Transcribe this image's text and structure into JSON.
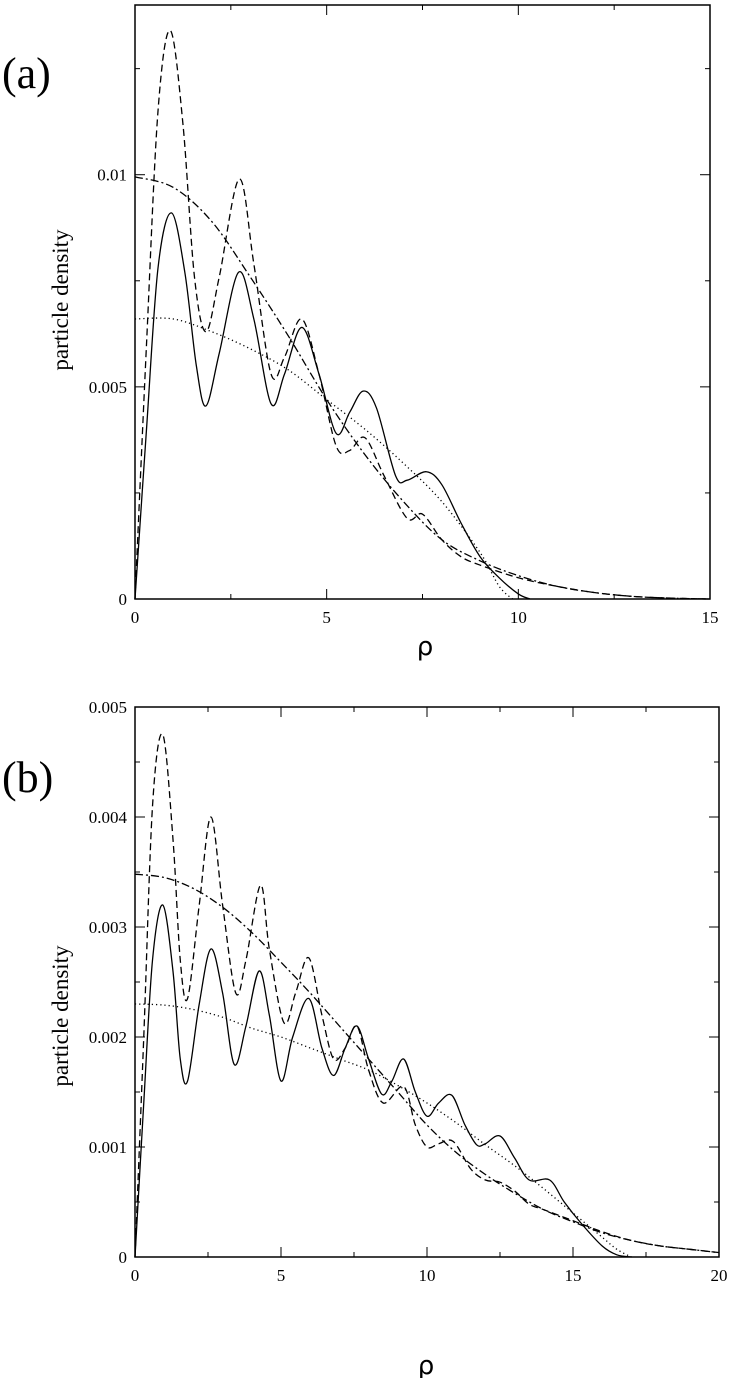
{
  "chart_data": [
    {
      "type": "line",
      "panel_label": "(a)",
      "xlabel": "ρ",
      "ylabel": "particle density",
      "xlim": [
        0,
        15
      ],
      "ylim": [
        0,
        0.014
      ],
      "xticks": [
        0,
        5,
        10,
        15
      ],
      "xtick_labels": [
        "0",
        "5",
        "10",
        "15"
      ],
      "yticks": [
        0,
        0.005,
        0.01
      ],
      "ytick_labels": [
        "0",
        "0.005",
        "0.01"
      ],
      "grid": false,
      "legend": "none",
      "series": [
        {
          "style": "solid",
          "points": [
            [
              0,
              0
            ],
            [
              0.3,
              0.004
            ],
            [
              0.6,
              0.0078
            ],
            [
              0.95,
              0.0091
            ],
            [
              1.3,
              0.0077
            ],
            [
              1.6,
              0.0055
            ],
            [
              1.85,
              0.00455
            ],
            [
              2.2,
              0.0058
            ],
            [
              2.7,
              0.0077
            ],
            [
              3.1,
              0.0066
            ],
            [
              3.55,
              0.0046
            ],
            [
              3.9,
              0.0053
            ],
            [
              4.35,
              0.0064
            ],
            [
              4.8,
              0.0053
            ],
            [
              5.25,
              0.0039
            ],
            [
              5.6,
              0.0044
            ],
            [
              5.95,
              0.0049
            ],
            [
              6.3,
              0.0045
            ],
            [
              6.8,
              0.0029
            ],
            [
              7.1,
              0.0028
            ],
            [
              7.6,
              0.003
            ],
            [
              8.0,
              0.0027
            ],
            [
              8.5,
              0.0018
            ],
            [
              9.0,
              0.001
            ],
            [
              9.5,
              0.0005
            ],
            [
              10.0,
              0.00012
            ],
            [
              10.3,
              0
            ]
          ]
        },
        {
          "style": "dashed",
          "points": [
            [
              0,
              0
            ],
            [
              0.3,
              0.006
            ],
            [
              0.6,
              0.0115
            ],
            [
              0.92,
              0.0134
            ],
            [
              1.25,
              0.0112
            ],
            [
              1.55,
              0.0076
            ],
            [
              1.85,
              0.0063
            ],
            [
              2.2,
              0.0076
            ],
            [
              2.72,
              0.0099
            ],
            [
              3.1,
              0.0079
            ],
            [
              3.55,
              0.0053
            ],
            [
              3.9,
              0.0057
            ],
            [
              4.35,
              0.0066
            ],
            [
              4.8,
              0.0053
            ],
            [
              5.25,
              0.0036
            ],
            [
              5.6,
              0.0035
            ],
            [
              6.0,
              0.0038
            ],
            [
              6.5,
              0.0029
            ],
            [
              7.1,
              0.0019
            ],
            [
              7.5,
              0.002
            ],
            [
              8.0,
              0.0014
            ],
            [
              8.5,
              0.001
            ],
            [
              9.0,
              0.0008
            ],
            [
              10.0,
              0.0005
            ],
            [
              11.0,
              0.0003
            ],
            [
              12.0,
              0.00015
            ],
            [
              13.0,
              6e-05
            ],
            [
              14.0,
              2e-05
            ],
            [
              15.0,
              0
            ]
          ]
        },
        {
          "style": "dashdot",
          "points": [
            [
              0,
              0.00995
            ],
            [
              1,
              0.0097
            ],
            [
              2,
              0.0089
            ],
            [
              3,
              0.0076
            ],
            [
              4,
              0.0062
            ],
            [
              5,
              0.0047
            ],
            [
              6,
              0.0034
            ],
            [
              7,
              0.0023
            ],
            [
              8,
              0.0014
            ],
            [
              9,
              0.0009
            ],
            [
              10,
              0.00055
            ],
            [
              11,
              0.0003
            ],
            [
              12,
              0.00015
            ],
            [
              13,
              6e-05
            ],
            [
              14,
              2e-05
            ],
            [
              15,
              0
            ]
          ]
        },
        {
          "style": "dotted",
          "points": [
            [
              0,
              0.0066
            ],
            [
              1,
              0.0066
            ],
            [
              2,
              0.0063
            ],
            [
              3,
              0.0059
            ],
            [
              4,
              0.0054
            ],
            [
              5,
              0.0047
            ],
            [
              6,
              0.004
            ],
            [
              7,
              0.0032
            ],
            [
              8,
              0.0023
            ],
            [
              9,
              0.0011
            ],
            [
              9.5,
              0.0003
            ],
            [
              9.85,
              0
            ]
          ]
        }
      ]
    },
    {
      "type": "line",
      "panel_label": "(b)",
      "xlabel": "ρ",
      "ylabel": "particle density",
      "xlim": [
        0,
        20
      ],
      "ylim": [
        0,
        0.005
      ],
      "xticks": [
        0,
        5,
        10,
        15,
        20
      ],
      "xtick_labels": [
        "0",
        "5",
        "10",
        "15",
        "20"
      ],
      "yticks": [
        0,
        0.001,
        0.002,
        0.003,
        0.004,
        0.005
      ],
      "ytick_labels": [
        "0",
        "0.001",
        "0.002",
        "0.003",
        "0.004",
        "0.005"
      ],
      "grid": false,
      "legend": "none",
      "series": [
        {
          "style": "solid",
          "points": [
            [
              0,
              0
            ],
            [
              0.3,
              0.0014
            ],
            [
              0.6,
              0.0027
            ],
            [
              0.95,
              0.0032
            ],
            [
              1.3,
              0.0026
            ],
            [
              1.55,
              0.0018
            ],
            [
              1.8,
              0.0016
            ],
            [
              2.2,
              0.0023
            ],
            [
              2.6,
              0.0028
            ],
            [
              3.0,
              0.0024
            ],
            [
              3.4,
              0.00175
            ],
            [
              3.8,
              0.0021
            ],
            [
              4.25,
              0.0026
            ],
            [
              4.6,
              0.0022
            ],
            [
              5.0,
              0.0016
            ],
            [
              5.4,
              0.002
            ],
            [
              5.95,
              0.00235
            ],
            [
              6.4,
              0.0019
            ],
            [
              6.8,
              0.00165
            ],
            [
              7.2,
              0.0019
            ],
            [
              7.6,
              0.0021
            ],
            [
              8.0,
              0.0018
            ],
            [
              8.45,
              0.00148
            ],
            [
              8.8,
              0.0016
            ],
            [
              9.2,
              0.0018
            ],
            [
              9.6,
              0.0015
            ],
            [
              10.0,
              0.00128
            ],
            [
              10.4,
              0.0014
            ],
            [
              10.85,
              0.00147
            ],
            [
              11.3,
              0.0012
            ],
            [
              11.7,
              0.00102
            ],
            [
              12.0,
              0.00103
            ],
            [
              12.5,
              0.0011
            ],
            [
              13.0,
              0.0009
            ],
            [
              13.5,
              0.0007
            ],
            [
              14.2,
              0.0007
            ],
            [
              14.7,
              0.0005
            ],
            [
              15.3,
              0.0003
            ],
            [
              16.0,
              0.0001
            ],
            [
              16.5,
              2e-05
            ],
            [
              17.0,
              0
            ]
          ]
        },
        {
          "style": "dashed",
          "points": [
            [
              0,
              0
            ],
            [
              0.3,
              0.002
            ],
            [
              0.6,
              0.0041
            ],
            [
              0.95,
              0.00475
            ],
            [
              1.3,
              0.0038
            ],
            [
              1.55,
              0.0027
            ],
            [
              1.8,
              0.00235
            ],
            [
              2.2,
              0.0032
            ],
            [
              2.6,
              0.004
            ],
            [
              3.0,
              0.0032
            ],
            [
              3.45,
              0.0024
            ],
            [
              3.8,
              0.0027
            ],
            [
              4.3,
              0.00338
            ],
            [
              4.6,
              0.0028
            ],
            [
              5.1,
              0.00213
            ],
            [
              5.5,
              0.0024
            ],
            [
              5.95,
              0.00272
            ],
            [
              6.4,
              0.0022
            ],
            [
              6.8,
              0.0018
            ],
            [
              7.2,
              0.0019
            ],
            [
              7.6,
              0.0021
            ],
            [
              8.0,
              0.0017
            ],
            [
              8.5,
              0.0014
            ],
            [
              9.2,
              0.00155
            ],
            [
              9.6,
              0.0012
            ],
            [
              10.0,
              0.001
            ],
            [
              10.4,
              0.00103
            ],
            [
              10.9,
              0.00105
            ],
            [
              11.5,
              0.0008
            ],
            [
              12.0,
              0.0007
            ],
            [
              12.5,
              0.00068
            ],
            [
              13.0,
              0.0006
            ],
            [
              13.5,
              0.00048
            ],
            [
              14.0,
              0.00043
            ],
            [
              15.0,
              0.00033
            ],
            [
              16.0,
              0.00023
            ],
            [
              17.0,
              0.00015
            ],
            [
              18.0,
              0.0001
            ],
            [
              19.0,
              7e-05
            ],
            [
              20.0,
              4e-05
            ]
          ]
        },
        {
          "style": "dashdot",
          "points": [
            [
              0,
              0.00348
            ],
            [
              1,
              0.00345
            ],
            [
              2,
              0.00335
            ],
            [
              3,
              0.00318
            ],
            [
              4,
              0.00295
            ],
            [
              5,
              0.00268
            ],
            [
              6,
              0.0024
            ],
            [
              7,
              0.0021
            ],
            [
              8,
              0.0018
            ],
            [
              9,
              0.0015
            ],
            [
              10,
              0.0012
            ],
            [
              11,
              0.00095
            ],
            [
              12,
              0.00075
            ],
            [
              13,
              0.00058
            ],
            [
              14,
              0.00043
            ],
            [
              15,
              0.00032
            ],
            [
              16,
              0.00022
            ],
            [
              17,
              0.00015
            ],
            [
              18,
              0.0001
            ],
            [
              19,
              7e-05
            ],
            [
              20,
              4e-05
            ]
          ]
        },
        {
          "style": "dotted",
          "points": [
            [
              0,
              0.0023
            ],
            [
              1,
              0.00229
            ],
            [
              2,
              0.00225
            ],
            [
              3,
              0.00218
            ],
            [
              4,
              0.00208
            ],
            [
              5,
              0.002
            ],
            [
              6,
              0.0019
            ],
            [
              7,
              0.0018
            ],
            [
              8,
              0.0017
            ],
            [
              9,
              0.00156
            ],
            [
              10,
              0.0014
            ],
            [
              11,
              0.00122
            ],
            [
              12,
              0.00102
            ],
            [
              13,
              0.00083
            ],
            [
              14,
              0.00062
            ],
            [
              15,
              0.0004
            ],
            [
              16,
              0.00018
            ],
            [
              16.5,
              7e-05
            ],
            [
              17,
              0
            ]
          ]
        }
      ]
    }
  ]
}
